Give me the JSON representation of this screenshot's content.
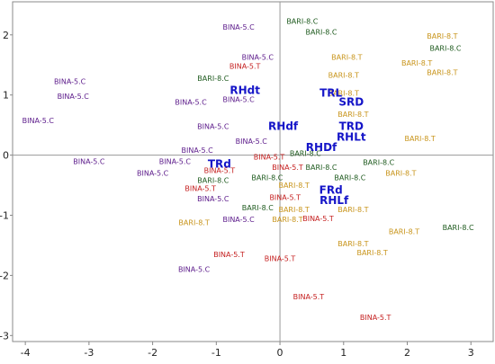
{
  "chart_data": {
    "type": "scatter",
    "title": "",
    "xlabel": "",
    "ylabel": "",
    "xlim": [
      -4.2,
      3.35
    ],
    "ylim": [
      -3.1,
      2.55
    ],
    "x_ticks": [
      -4,
      -3,
      -2,
      -1,
      0,
      1,
      2,
      3
    ],
    "y_ticks": [
      -3,
      -2,
      -1,
      0,
      1,
      2
    ],
    "grid": false,
    "zero_lines": true,
    "colors": {
      "bina_c": "#5b1a8a",
      "bina_t": "#c41e1e",
      "bari_c": "#1e5a1e",
      "bari_t": "#c8941a",
      "variable": "#1515c8"
    },
    "series": [
      {
        "group": "bina_c",
        "points": [
          {
            "x": -0.65,
            "y": 2.13,
            "label": "BINA-5.C"
          },
          {
            "x": -0.35,
            "y": 1.63,
            "label": "BINA-5.C"
          },
          {
            "x": -3.3,
            "y": 1.23,
            "label": "BINA-5.C"
          },
          {
            "x": -3.25,
            "y": 0.98,
            "label": "BINA-5.C"
          },
          {
            "x": -1.4,
            "y": 0.88,
            "label": "BINA-5.C"
          },
          {
            "x": -0.65,
            "y": 0.93,
            "label": "BINA-5.C"
          },
          {
            "x": -3.8,
            "y": 0.58,
            "label": "BINA-5.C"
          },
          {
            "x": -1.05,
            "y": 0.48,
            "label": "BINA-5.C"
          },
          {
            "x": -0.45,
            "y": 0.23,
            "label": "BINA-5.C"
          },
          {
            "x": -1.3,
            "y": 0.08,
            "label": "BINA-5.C"
          },
          {
            "x": -3.0,
            "y": -0.1,
            "label": "BINA-5.C"
          },
          {
            "x": -1.65,
            "y": -0.1,
            "label": "BINA-5.C"
          },
          {
            "x": -2.0,
            "y": -0.3,
            "label": "BINA-5.C"
          },
          {
            "x": -1.05,
            "y": -0.72,
            "label": "BINA-5.C"
          },
          {
            "x": -0.65,
            "y": -1.07,
            "label": "BINA-5.C"
          },
          {
            "x": -1.35,
            "y": -1.9,
            "label": "BINA-5.C"
          }
        ]
      },
      {
        "group": "bina_t",
        "points": [
          {
            "x": -0.55,
            "y": 1.48,
            "label": "BINA-5.T"
          },
          {
            "x": -0.17,
            "y": -0.03,
            "label": "BINA-5.T"
          },
          {
            "x": 0.12,
            "y": -0.2,
            "label": "BINA-5.T"
          },
          {
            "x": -0.95,
            "y": -0.25,
            "label": "BINA-5.T"
          },
          {
            "x": -1.25,
            "y": -0.55,
            "label": "BINA-5.T"
          },
          {
            "x": 0.08,
            "y": -0.7,
            "label": "BINA-5.T"
          },
          {
            "x": 0.6,
            "y": -1.05,
            "label": "BINA-5.T"
          },
          {
            "x": -0.8,
            "y": -1.65,
            "label": "BINA-5.T"
          },
          {
            "x": 0.0,
            "y": -1.72,
            "label": "BINA-5.T"
          },
          {
            "x": 0.45,
            "y": -2.35,
            "label": "BINA-5.T"
          },
          {
            "x": 1.5,
            "y": -2.7,
            "label": "BINA-5.T"
          }
        ]
      },
      {
        "group": "bari_c",
        "points": [
          {
            "x": 0.35,
            "y": 2.23,
            "label": "BARI-8.C"
          },
          {
            "x": 0.65,
            "y": 2.05,
            "label": "BARI-8.C"
          },
          {
            "x": 2.6,
            "y": 1.78,
            "label": "BARI-8.C"
          },
          {
            "x": -1.05,
            "y": 1.28,
            "label": "BARI-8.C"
          },
          {
            "x": 0.4,
            "y": 0.03,
            "label": "BARI-8.C"
          },
          {
            "x": 0.65,
            "y": -0.2,
            "label": "BARI-8.C"
          },
          {
            "x": 1.55,
            "y": -0.12,
            "label": "BARI-8.C"
          },
          {
            "x": -0.2,
            "y": -0.37,
            "label": "BARI-8.C"
          },
          {
            "x": 1.1,
            "y": -0.37,
            "label": "BARI-8.C"
          },
          {
            "x": -1.05,
            "y": -0.42,
            "label": "BARI-8.C"
          },
          {
            "x": -0.35,
            "y": -0.87,
            "label": "BARI-8.C"
          },
          {
            "x": 2.8,
            "y": -1.2,
            "label": "BARI-8.C"
          }
        ]
      },
      {
        "group": "bari_t",
        "points": [
          {
            "x": 2.55,
            "y": 1.98,
            "label": "BARI-8.T"
          },
          {
            "x": 1.05,
            "y": 1.63,
            "label": "BARI-8.T"
          },
          {
            "x": 2.15,
            "y": 1.53,
            "label": "BARI-8.T"
          },
          {
            "x": 2.55,
            "y": 1.38,
            "label": "BARI-8.T"
          },
          {
            "x": 1.0,
            "y": 1.33,
            "label": "BARI-8.T"
          },
          {
            "x": 1.0,
            "y": 1.03,
            "label": "BARI-8.T"
          },
          {
            "x": 1.15,
            "y": 0.68,
            "label": "BARI-8.T"
          },
          {
            "x": 2.2,
            "y": 0.28,
            "label": "BARI-8.T"
          },
          {
            "x": 1.9,
            "y": -0.3,
            "label": "BARI-8.T"
          },
          {
            "x": 0.22,
            "y": -0.5,
            "label": "BARI-8.T"
          },
          {
            "x": 0.22,
            "y": -0.9,
            "label": "BARI-8.T"
          },
          {
            "x": 0.12,
            "y": -1.07,
            "label": "BARI-8.T"
          },
          {
            "x": -1.35,
            "y": -1.12,
            "label": "BARI-8.T"
          },
          {
            "x": 1.15,
            "y": -0.9,
            "label": "BARI-8.T"
          },
          {
            "x": 1.95,
            "y": -1.27,
            "label": "BARI-8.T"
          },
          {
            "x": 1.15,
            "y": -1.47,
            "label": "BARI-8.T"
          },
          {
            "x": 1.45,
            "y": -1.62,
            "label": "BARI-8.T"
          }
        ]
      },
      {
        "group": "variable",
        "points": [
          {
            "x": -0.55,
            "y": 1.08,
            "label": "RHdt"
          },
          {
            "x": 0.8,
            "y": 1.03,
            "label": "TRL"
          },
          {
            "x": 1.12,
            "y": 0.88,
            "label": "SRD"
          },
          {
            "x": 1.12,
            "y": 0.48,
            "label": "TRD"
          },
          {
            "x": 1.12,
            "y": 0.3,
            "label": "RHLt"
          },
          {
            "x": 0.05,
            "y": 0.48,
            "label": "RHdf"
          },
          {
            "x": 0.65,
            "y": 0.13,
            "label": "RHDf"
          },
          {
            "x": -0.95,
            "y": -0.15,
            "label": "TRd"
          },
          {
            "x": 0.8,
            "y": -0.58,
            "label": "FRd"
          },
          {
            "x": 0.85,
            "y": -0.75,
            "label": "RHLf"
          }
        ]
      }
    ]
  }
}
